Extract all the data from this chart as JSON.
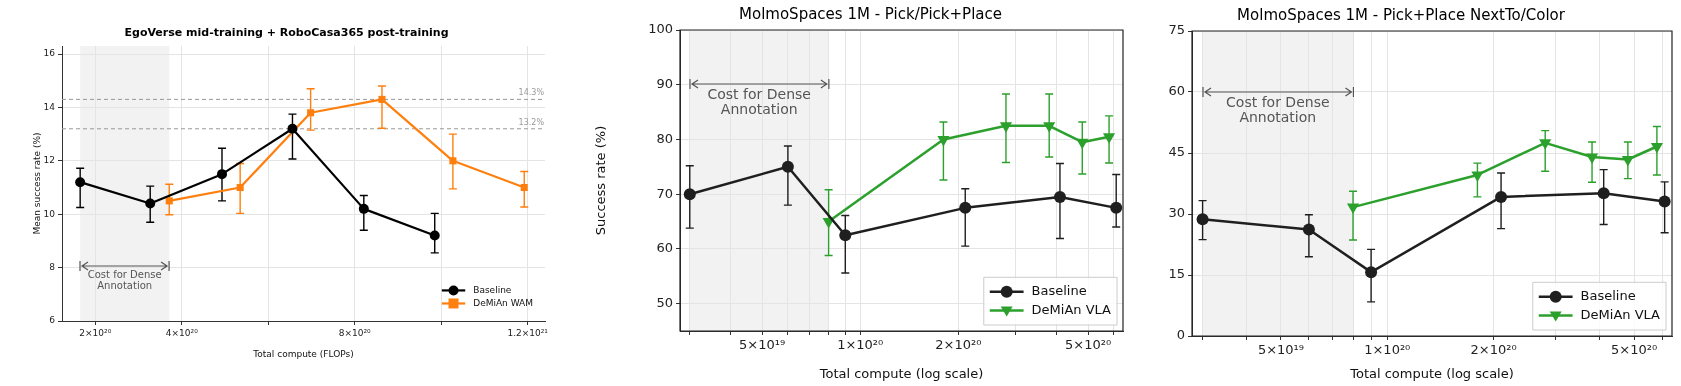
{
  "chart_data": [
    {
      "type": "line",
      "title": "EgoVerse mid-training + RoboCasa365 post-training",
      "xlabel": "Total compute (FLOPs)",
      "ylabel": "Mean success rate (%)",
      "xlim": [
        1.23e+20,
        1.24e+21
      ],
      "xticks": [
        {
          "value": 2e+20,
          "label": "2×10²⁰"
        },
        {
          "value": 4e+20,
          "label": "4×10²⁰"
        },
        {
          "value": 6e+20,
          "label": null
        },
        {
          "value": 8e+20,
          "label": "8×10²⁰"
        },
        {
          "value": 1e+21,
          "label": null
        },
        {
          "value": 1.2e+21,
          "label": "1.2×10²¹"
        }
      ],
      "ylim": [
        6,
        16.3
      ],
      "yticks": [
        6,
        8,
        10,
        12,
        14,
        16
      ],
      "grid": true,
      "legend": "bottom right",
      "series": [
        {
          "name": "Baseline",
          "color": "#000000",
          "marker": "circle",
          "x": [
            1.65e+20,
            3.27e+20,
            4.93e+20,
            6.56e+20,
            8.21e+20,
            9.85e+20
          ],
          "values": [
            11.2,
            10.4,
            11.5,
            13.2,
            10.2,
            9.2
          ],
          "errors": [
            [
              10.25,
              11.72
            ],
            [
              9.7,
              11.05
            ],
            [
              10.5,
              12.47
            ],
            [
              12.07,
              13.75
            ],
            [
              9.4,
              10.7
            ],
            [
              8.55,
              10.03
            ]
          ]
        },
        {
          "name": "DeMiAn WAM",
          "color": "#ff7f0e",
          "marker": "square",
          "x": [
            3.71e+20,
            5.35e+20,
            6.98e+20,
            8.63e+20,
            1.027e+21,
            1.192e+21
          ],
          "values": [
            10.5,
            11.0,
            13.8,
            14.3,
            12.0,
            11.0
          ],
          "errors": [
            [
              9.98,
              11.12
            ],
            [
              10.03,
              11.9
            ],
            [
              13.15,
              14.7
            ],
            [
              13.22,
              14.8
            ],
            [
              10.95,
              13.0
            ],
            [
              10.27,
              11.6
            ]
          ]
        }
      ],
      "ref_lines": [
        {
          "axis": "y",
          "value": 14.3,
          "label": "14.3%",
          "color": "#999999",
          "line_style": "dashed"
        },
        {
          "axis": "y",
          "value": 13.2,
          "label": "13.2%",
          "color": "#999999",
          "line_style": "dashed"
        }
      ],
      "bands": [
        {
          "axis": "x",
          "from": 1.65e+20,
          "to": 3.71e+20,
          "label": "Cost for Dense Annotation",
          "color": "#f2f2f2"
        }
      ]
    },
    {
      "type": "line",
      "title": "MolmoSpaces 1M - Pick/Pick+Place",
      "xlabel": "Total compute (log scale)",
      "ylabel": "Success rate (%)",
      "log": "x",
      "xlim": [
        2.8e+19,
        6.4e+20
      ],
      "xticks": [
        {
          "value": 3e+19,
          "label": null
        },
        {
          "value": 4e+19,
          "label": null
        },
        {
          "value": 5e+19,
          "label": "5×10¹⁹"
        },
        {
          "value": 6e+19,
          "label": null
        },
        {
          "value": 7e+19,
          "label": null
        },
        {
          "value": 8e+19,
          "label": null
        },
        {
          "value": 9e+19,
          "label": null
        },
        {
          "value": 1e+20,
          "label": "1×10²⁰"
        },
        {
          "value": 2e+20,
          "label": "2×10²⁰"
        },
        {
          "value": 3e+20,
          "label": null
        },
        {
          "value": 4e+20,
          "label": null
        },
        {
          "value": 5e+20,
          "label": "5×10²⁰"
        },
        {
          "value": 6e+20,
          "label": null
        }
      ],
      "ylim": [
        45,
        100
      ],
      "yticks": [
        50,
        60,
        70,
        80,
        90,
        100
      ],
      "grid": true,
      "legend": "bottom right",
      "series": [
        {
          "name": "Baseline",
          "color": "#1f1f1f",
          "marker": "circle",
          "x": [
            3e+19,
            6e+19,
            9e+19,
            2.1e+20,
            4.1e+20,
            6.1e+20
          ],
          "values": [
            70,
            75,
            62.5,
            67.5,
            69.5,
            67.5
          ],
          "errors": [
            [
              63.8,
              75.2
            ],
            [
              68,
              78.8
            ],
            [
              55.6,
              66.1
            ],
            [
              60.5,
              71
            ],
            [
              61.9,
              75.6
            ],
            [
              64,
              73.6
            ]
          ]
        },
        {
          "name": "DeMiAn VLA",
          "color": "#2ca02c",
          "marker": "triangle",
          "x": [
            8e+19,
            1.8e+20,
            2.8e+20,
            3.8e+20,
            4.8e+20,
            5.8e+20
          ],
          "values": [
            65,
            80,
            82.5,
            82.5,
            79.5,
            80.5
          ],
          "errors": [
            [
              58.8,
              70.8
            ],
            [
              72.6,
              83.2
            ],
            [
              75.8,
              88.3
            ],
            [
              76.8,
              88.3
            ],
            [
              73.7,
              83.2
            ],
            [
              75.7,
              84.3
            ]
          ]
        }
      ],
      "bands": [
        {
          "axis": "x",
          "from": 3e+19,
          "to": 8e+19,
          "label": "Cost for Dense Annotation",
          "color": "#f2f2f2"
        }
      ]
    },
    {
      "type": "line",
      "title": "MolmoSpaces 1M - Pick+Place NextTo/Color",
      "xlabel": "Total compute (log scale)",
      "log": "x",
      "xlim": [
        2.8e+19,
        6.4e+20
      ],
      "xticks": [
        {
          "value": 3e+19,
          "label": null
        },
        {
          "value": 4e+19,
          "label": null
        },
        {
          "value": 5e+19,
          "label": "5×10¹⁹"
        },
        {
          "value": 6e+19,
          "label": null
        },
        {
          "value": 7e+19,
          "label": null
        },
        {
          "value": 8e+19,
          "label": null
        },
        {
          "value": 9e+19,
          "label": null
        },
        {
          "value": 1e+20,
          "label": "1×10²⁰"
        },
        {
          "value": 2e+20,
          "label": "2×10²⁰"
        },
        {
          "value": 3e+20,
          "label": null
        },
        {
          "value": 4e+20,
          "label": null
        },
        {
          "value": 5e+20,
          "label": "5×10²⁰"
        },
        {
          "value": 6e+20,
          "label": null
        }
      ],
      "ylim": [
        0,
        75
      ],
      "yticks": [
        0,
        15,
        30,
        45,
        60,
        75
      ],
      "grid": true,
      "legend": "bottom right",
      "series": [
        {
          "name": "Baseline",
          "color": "#1f1f1f",
          "marker": "circle",
          "x": [
            3e+19,
            6e+19,
            9e+19,
            2.1e+20,
            4.1e+20,
            6.1e+20
          ],
          "values": [
            28.7,
            26.2,
            15.7,
            34.2,
            35.1,
            33.1
          ],
          "errors": [
            [
              23.7,
              33.3
            ],
            [
              19.5,
              29.8
            ],
            [
              8.4,
              21.3
            ],
            [
              26.4,
              40.1
            ],
            [
              27.4,
              40.9
            ],
            [
              25.4,
              37.9
            ]
          ]
        },
        {
          "name": "DeMiAn VLA",
          "color": "#2ca02c",
          "marker": "triangle",
          "x": [
            8e+19,
            1.8e+20,
            2.8e+20,
            3.8e+20,
            4.8e+20,
            5.8e+20
          ],
          "values": [
            31.7,
            39.6,
            47.5,
            44,
            43.4,
            46.6
          ],
          "errors": [
            [
              23.6,
              35.6
            ],
            [
              34.2,
              42.5
            ],
            [
              40.5,
              50.5
            ],
            [
              37.8,
              47.7
            ],
            [
              38.7,
              47.7
            ],
            [
              39.6,
              51.5
            ]
          ]
        }
      ],
      "bands": [
        {
          "axis": "x",
          "from": 3e+19,
          "to": 8e+19,
          "label": "Cost for Dense Annotation",
          "color": "#f2f2f2"
        }
      ]
    }
  ]
}
